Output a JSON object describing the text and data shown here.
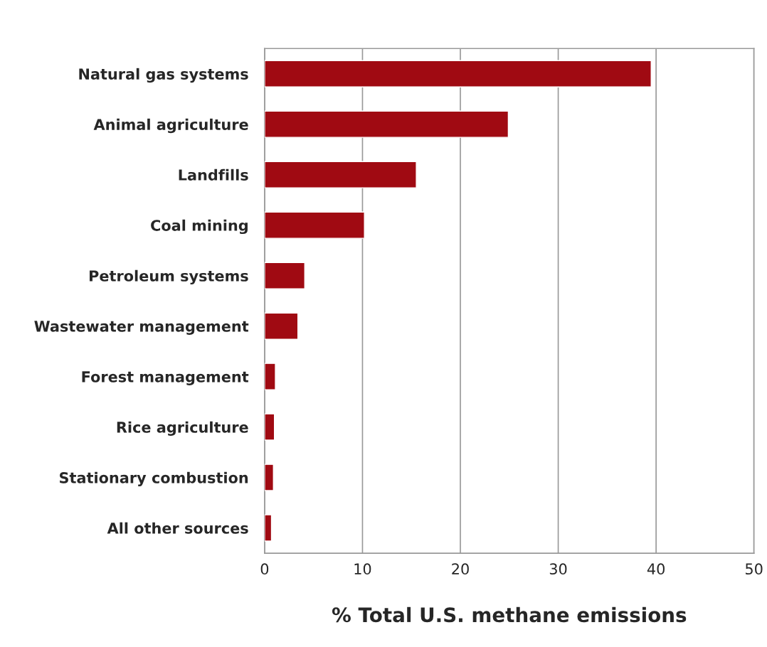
{
  "chart_data": {
    "type": "bar",
    "orientation": "horizontal",
    "xlabel": "% Total U.S. methane emissions",
    "categories": [
      "Natural gas systems",
      "Animal agriculture",
      "Landfills",
      "Coal mining",
      "Petroleum systems",
      "Wastewater management",
      "Forest management",
      "Rice agriculture",
      "Stationary combustion",
      "All other sources"
    ],
    "values": [
      39.5,
      24.9,
      15.5,
      10.2,
      4.1,
      3.4,
      1.1,
      1.0,
      0.9,
      0.7
    ],
    "color": "#a00a12",
    "xlim": [
      0,
      50
    ],
    "xticks": [
      0,
      10,
      20,
      30,
      40,
      50
    ],
    "grid": "x",
    "legend": false
  }
}
